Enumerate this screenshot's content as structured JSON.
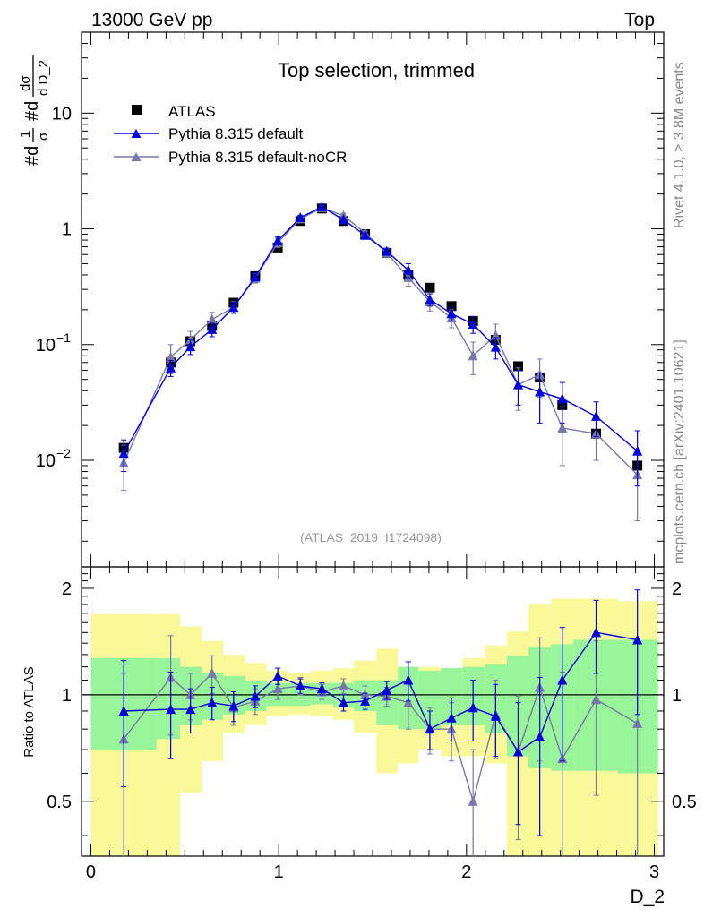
{
  "header": {
    "left": "13000 GeV pp",
    "right": "Top"
  },
  "main_title": "Top selection, trimmed",
  "y_axis_label": {
    "h1": "#d",
    "num1": "1",
    "den1": "σ",
    "h2": "#d",
    "num2": "dσ",
    "den2": "d D_2"
  },
  "x_axis_label": "D_2",
  "ratio_label": "Ratio to ATLAS",
  "reference": "(ATLAS_2019_I1724098)",
  "side_text_1": "Rivet 4.1.0, ≥ 3.8M events",
  "side_text_2": "mcplots.cern.ch [arXiv:2401.10621]",
  "colors": {
    "data": "#000000",
    "default": "#0000dd",
    "nocr": "#7777aa",
    "band1": "#99f599",
    "band2": "#f9f999"
  },
  "chart_data": {
    "type": "line",
    "x": [
      0.175,
      0.425,
      0.53,
      0.645,
      0.76,
      0.875,
      0.995,
      1.115,
      1.23,
      1.345,
      1.46,
      1.575,
      1.69,
      1.805,
      1.92,
      2.035,
      2.155,
      2.275,
      2.39,
      2.51,
      2.69,
      2.91
    ],
    "xlim": [
      -0.05,
      3.05
    ],
    "main_ylim": [
      0.0012,
      50
    ],
    "main_yscale": "log",
    "y_ticks": [
      {
        "v": 0.01,
        "m": "10",
        "e": "−2"
      },
      {
        "v": 0.1,
        "m": "10",
        "e": "−1"
      },
      {
        "v": 1,
        "m": "1",
        "e": ""
      },
      {
        "v": 10,
        "m": "10",
        "e": ""
      }
    ],
    "x_ticks": [
      {
        "v": 0,
        "t": "0"
      },
      {
        "v": 1,
        "t": "1"
      },
      {
        "v": 2,
        "t": "2"
      },
      {
        "v": 3,
        "t": "3"
      }
    ],
    "ratio_ylim": [
      0.35,
      2.3
    ],
    "ratio_ticks": [
      {
        "v": 0.5,
        "t": "0.5"
      },
      {
        "v": 1,
        "t": "1"
      },
      {
        "v": 2,
        "t": "2"
      }
    ],
    "series": [
      {
        "name": "ATLAS",
        "marker": "square",
        "values": [
          0.0128,
          0.07,
          0.107,
          0.145,
          0.23,
          0.39,
          0.69,
          1.17,
          1.5,
          1.17,
          0.9,
          0.62,
          0.4,
          0.31,
          0.215,
          0.16,
          0.11,
          0.065,
          0.052,
          0.03,
          0.017,
          0.009
        ]
      },
      {
        "name": "Pythia 8.315 default",
        "marker": "triangle",
        "values": [
          0.0115,
          0.063,
          0.096,
          0.135,
          0.21,
          0.385,
          0.79,
          1.25,
          1.55,
          1.2,
          0.88,
          0.64,
          0.44,
          0.245,
          0.185,
          0.15,
          0.095,
          0.045,
          0.039,
          0.034,
          0.024,
          0.012
        ],
        "err": [
          0.0035,
          0.01,
          0.014,
          0.018,
          0.022,
          0.03,
          0.06,
          0.06,
          0.06,
          0.05,
          0.04,
          0.04,
          0.06,
          0.03,
          0.025,
          0.025,
          0.02,
          0.015,
          0.018,
          0.013,
          0.008,
          0.006
        ],
        "ratio": [
          0.9,
          0.91,
          0.91,
          0.95,
          0.93,
          0.99,
          1.13,
          1.06,
          1.04,
          0.95,
          0.96,
          1.03,
          1.1,
          0.8,
          0.86,
          0.92,
          0.87,
          0.69,
          0.76,
          1.1,
          1.5,
          1.43
        ],
        "ratio_err": [
          0.35,
          0.25,
          0.13,
          0.1,
          0.09,
          0.07,
          0.06,
          0.05,
          0.04,
          0.05,
          0.05,
          0.06,
          0.14,
          0.1,
          0.12,
          0.18,
          0.2,
          0.26,
          0.36,
          0.45,
          0.35,
          0.55
        ]
      },
      {
        "name": "Pythia 8.315 default-noCR",
        "marker": "triangle",
        "values": [
          0.0095,
          0.078,
          0.11,
          0.165,
          0.21,
          0.375,
          0.76,
          1.22,
          1.52,
          1.3,
          0.92,
          0.62,
          0.38,
          0.235,
          0.17,
          0.08,
          0.12,
          0.045,
          0.055,
          0.019,
          0.017,
          0.0075
        ],
        "err": [
          0.004,
          0.022,
          0.02,
          0.025,
          0.025,
          0.035,
          0.07,
          0.07,
          0.06,
          0.06,
          0.05,
          0.05,
          0.06,
          0.04,
          0.03,
          0.025,
          0.03,
          0.018,
          0.02,
          0.01,
          0.007,
          0.0045
        ],
        "ratio": [
          0.75,
          1.12,
          1.0,
          1.15,
          0.92,
          0.96,
          1.04,
          1.06,
          1.02,
          1.06,
          1.0,
          0.99,
          0.95,
          0.8,
          0.8,
          0.5,
          0.88,
          0.69,
          1.05,
          0.66,
          0.97,
          0.83
        ],
        "ratio_err": [
          0.4,
          0.35,
          0.15,
          0.14,
          0.1,
          0.08,
          0.07,
          0.06,
          0.05,
          0.05,
          0.06,
          0.06,
          0.15,
          0.12,
          0.15,
          0.2,
          0.22,
          0.3,
          0.4,
          0.5,
          0.45,
          0.6
        ]
      }
    ],
    "ratio_bands": [
      {
        "x0": 0.0,
        "x1": 0.35,
        "lo1": 0.7,
        "hi1": 1.27,
        "lo2": 0.35,
        "hi2": 1.69
      },
      {
        "x0": 0.35,
        "x1": 0.475,
        "lo1": 0.75,
        "hi1": 1.27,
        "lo2": 0.35,
        "hi2": 1.69
      },
      {
        "x0": 0.475,
        "x1": 0.59,
        "lo1": 0.82,
        "hi1": 1.2,
        "lo2": 0.53,
        "hi2": 1.56
      },
      {
        "x0": 0.59,
        "x1": 0.705,
        "lo1": 0.85,
        "hi1": 1.15,
        "lo2": 0.65,
        "hi2": 1.42
      },
      {
        "x0": 0.705,
        "x1": 0.82,
        "lo1": 0.88,
        "hi1": 1.13,
        "lo2": 0.78,
        "hi2": 1.3
      },
      {
        "x0": 0.82,
        "x1": 0.935,
        "lo1": 0.9,
        "hi1": 1.1,
        "lo2": 0.82,
        "hi2": 1.23
      },
      {
        "x0": 0.935,
        "x1": 1.055,
        "lo1": 0.93,
        "hi1": 1.08,
        "lo2": 0.87,
        "hi2": 1.17
      },
      {
        "x0": 1.055,
        "x1": 1.17,
        "lo1": 0.93,
        "hi1": 1.08,
        "lo2": 0.88,
        "hi2": 1.15
      },
      {
        "x0": 1.17,
        "x1": 1.29,
        "lo1": 0.94,
        "hi1": 1.08,
        "lo2": 0.87,
        "hi2": 1.17
      },
      {
        "x0": 1.29,
        "x1": 1.4,
        "lo1": 0.92,
        "hi1": 1.08,
        "lo2": 0.85,
        "hi2": 1.19
      },
      {
        "x0": 1.4,
        "x1": 1.52,
        "lo1": 0.9,
        "hi1": 1.1,
        "lo2": 0.78,
        "hi2": 1.25
      },
      {
        "x0": 1.52,
        "x1": 1.635,
        "lo1": 0.82,
        "hi1": 1.1,
        "lo2": 0.6,
        "hi2": 1.35
      },
      {
        "x0": 1.635,
        "x1": 1.745,
        "lo1": 0.8,
        "hi1": 1.2,
        "lo2": 0.64,
        "hi2": 1.2
      },
      {
        "x0": 1.745,
        "x1": 1.865,
        "lo1": 0.8,
        "hi1": 1.17,
        "lo2": 0.7,
        "hi2": 1.2
      },
      {
        "x0": 1.865,
        "x1": 1.98,
        "lo1": 0.82,
        "hi1": 1.19,
        "lo2": 0.67,
        "hi2": 1.19
      },
      {
        "x0": 1.98,
        "x1": 2.1,
        "lo1": 0.82,
        "hi1": 1.2,
        "lo2": 0.67,
        "hi2": 1.27
      },
      {
        "x0": 2.1,
        "x1": 2.215,
        "lo1": 0.78,
        "hi1": 1.22,
        "lo2": 0.64,
        "hi2": 1.38
      },
      {
        "x0": 2.215,
        "x1": 2.33,
        "lo1": 0.67,
        "hi1": 1.29,
        "lo2": 0.35,
        "hi2": 1.51
      },
      {
        "x0": 2.33,
        "x1": 2.45,
        "lo1": 0.62,
        "hi1": 1.36,
        "lo2": 0.35,
        "hi2": 1.8
      },
      {
        "x0": 2.45,
        "x1": 2.57,
        "lo1": 0.61,
        "hi1": 1.39,
        "lo2": 0.35,
        "hi2": 1.87
      },
      {
        "x0": 2.57,
        "x1": 2.805,
        "lo1": 0.61,
        "hi1": 1.43,
        "lo2": 0.35,
        "hi2": 1.87
      },
      {
        "x0": 2.805,
        "x1": 3.02,
        "lo1": 0.6,
        "hi1": 1.43,
        "lo2": 0.35,
        "hi2": 1.84
      }
    ]
  }
}
